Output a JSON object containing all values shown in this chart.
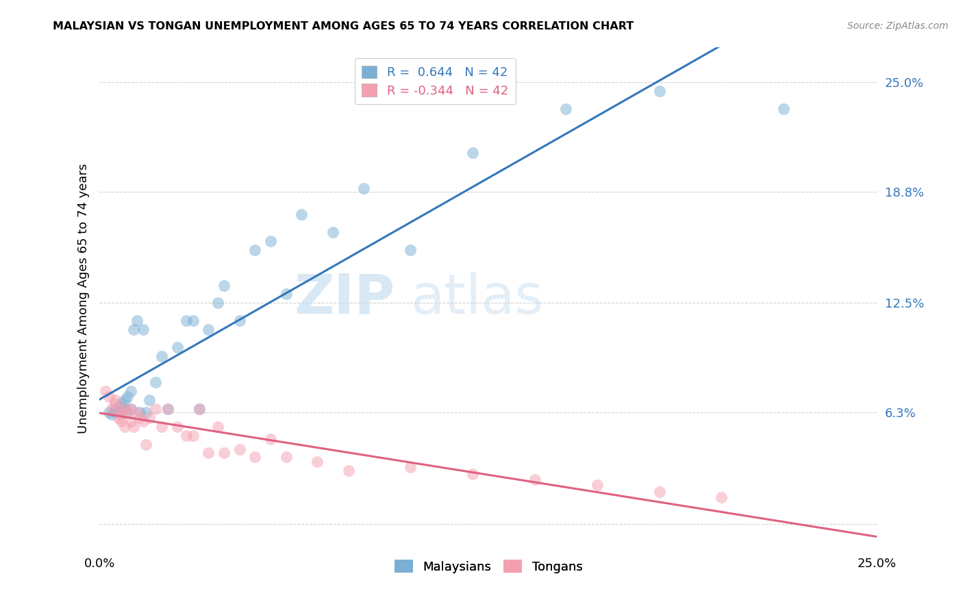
{
  "title": "MALAYSIAN VS TONGAN UNEMPLOYMENT AMONG AGES 65 TO 74 YEARS CORRELATION CHART",
  "source": "Source: ZipAtlas.com",
  "ylabel": "Unemployment Among Ages 65 to 74 years",
  "xlim": [
    0.0,
    0.25
  ],
  "ylim": [
    -0.015,
    0.27
  ],
  "ytick_vals": [
    0.0,
    0.063,
    0.125,
    0.188,
    0.25
  ],
  "ytick_labels": [
    "",
    "6.3%",
    "12.5%",
    "18.8%",
    "25.0%"
  ],
  "xtick_vals": [
    0.0,
    0.25
  ],
  "xtick_labels": [
    "0.0%",
    "25.0%"
  ],
  "background_color": "#ffffff",
  "grid_color": "#cccccc",
  "blue_scatter_color": "#7bafd4",
  "pink_scatter_color": "#f4a0b0",
  "blue_line_color": "#3377bb",
  "pink_line_color": "#e06080",
  "blue_text_color": "#3377bb",
  "pink_text_color": "#e06080",
  "legend1_label1": "R =  0.644   N = 42",
  "legend1_label2": "R = -0.344   N = 42",
  "legend2_label1": "Malaysians",
  "legend2_label2": "Tongans",
  "watermark_zip": "ZIP",
  "watermark_atlas": "atlas",
  "malaysian_x": [
    0.003,
    0.004,
    0.005,
    0.005,
    0.006,
    0.006,
    0.007,
    0.007,
    0.008,
    0.008,
    0.009,
    0.009,
    0.01,
    0.01,
    0.011,
    0.012,
    0.013,
    0.014,
    0.015,
    0.016,
    0.018,
    0.02,
    0.022,
    0.025,
    0.028,
    0.03,
    0.032,
    0.035,
    0.038,
    0.04,
    0.045,
    0.05,
    0.055,
    0.06,
    0.065,
    0.075,
    0.085,
    0.1,
    0.12,
    0.15,
    0.18,
    0.22
  ],
  "malaysian_y": [
    0.063,
    0.062,
    0.065,
    0.063,
    0.064,
    0.066,
    0.065,
    0.068,
    0.065,
    0.07,
    0.072,
    0.063,
    0.065,
    0.075,
    0.11,
    0.115,
    0.063,
    0.11,
    0.063,
    0.07,
    0.08,
    0.095,
    0.065,
    0.1,
    0.115,
    0.115,
    0.065,
    0.11,
    0.125,
    0.135,
    0.115,
    0.155,
    0.16,
    0.13,
    0.175,
    0.165,
    0.19,
    0.155,
    0.21,
    0.235,
    0.245,
    0.235
  ],
  "tongan_x": [
    0.002,
    0.003,
    0.004,
    0.005,
    0.005,
    0.006,
    0.006,
    0.007,
    0.007,
    0.008,
    0.008,
    0.009,
    0.01,
    0.01,
    0.011,
    0.012,
    0.013,
    0.014,
    0.015,
    0.016,
    0.018,
    0.02,
    0.022,
    0.025,
    0.028,
    0.03,
    0.032,
    0.035,
    0.038,
    0.04,
    0.045,
    0.05,
    0.055,
    0.06,
    0.07,
    0.08,
    0.1,
    0.12,
    0.14,
    0.16,
    0.18,
    0.2
  ],
  "tongan_y": [
    0.075,
    0.072,
    0.065,
    0.068,
    0.07,
    0.065,
    0.06,
    0.062,
    0.058,
    0.065,
    0.055,
    0.063,
    0.065,
    0.058,
    0.055,
    0.063,
    0.06,
    0.058,
    0.045,
    0.06,
    0.065,
    0.055,
    0.065,
    0.055,
    0.05,
    0.05,
    0.065,
    0.04,
    0.055,
    0.04,
    0.042,
    0.038,
    0.048,
    0.038,
    0.035,
    0.03,
    0.032,
    0.028,
    0.025,
    0.022,
    0.018,
    0.015
  ]
}
